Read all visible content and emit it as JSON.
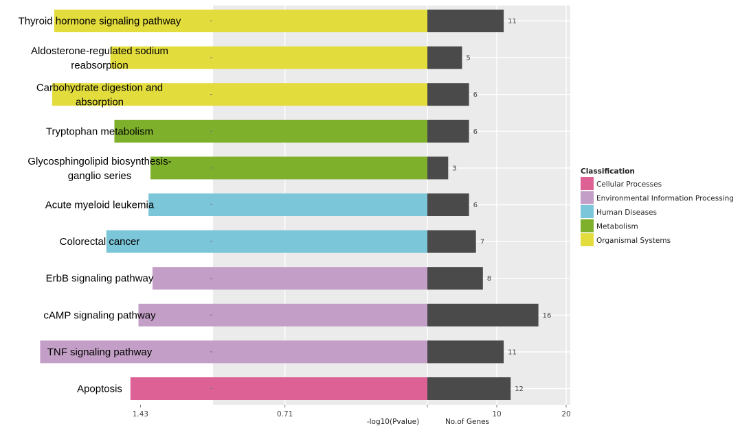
{
  "chart_data": {
    "type": "bar",
    "categories": [
      "Thyroid hormone signaling pathway",
      "Aldosterone-regulated sodium reabsorption",
      "Carbohydrate digestion and absorption",
      "Tryptophan metabolism",
      "Glycosphingolipid biosynthesis-ganglio series",
      "Acute myeloid leukemia",
      "Colorectal cancer",
      "ErbB signaling pathway",
      "cAMP signaling pathway",
      "TNF signaling pathway",
      "Apoptosis"
    ],
    "label_lines": [
      [
        "Thyroid hormone signaling pathway"
      ],
      [
        "Aldosterone-regulated sodium",
        "reabsorption"
      ],
      [
        "Carbohydrate digestion and",
        "absorption"
      ],
      [
        "Tryptophan metabolism"
      ],
      [
        "Glycosphingolipid biosynthesis-",
        "ganglio series"
      ],
      [
        "Acute myeloid leukemia"
      ],
      [
        "Colorectal cancer"
      ],
      [
        "ErbB signaling pathway"
      ],
      [
        "cAMP signaling pathway"
      ],
      [
        "TNF signaling pathway"
      ],
      [
        "Apoptosis"
      ]
    ],
    "classification": [
      "Organismal Systems",
      "Organismal Systems",
      "Organismal Systems",
      "Metabolism",
      "Metabolism",
      "Human Diseases",
      "Human Diseases",
      "Environmental Information Processing",
      "Environmental Information Processing",
      "Environmental Information Processing",
      "Cellular Processes"
    ],
    "series": [
      {
        "name": "-log10(Pvalue)",
        "values": [
          1.86,
          1.58,
          1.87,
          1.56,
          1.38,
          1.39,
          1.6,
          1.37,
          1.44,
          1.93,
          1.48
        ]
      },
      {
        "name": "No.of Genes",
        "values": [
          11,
          5,
          6,
          6,
          3,
          6,
          7,
          8,
          16,
          11,
          12
        ]
      }
    ],
    "left_axis": {
      "label": "-log10(Pvalue)",
      "ticks": [
        1.43,
        0.71
      ],
      "tick_labels": [
        "1.43",
        "0.71"
      ],
      "range": [
        2.14,
        0
      ]
    },
    "right_axis": {
      "label": "No.of Genes",
      "ticks": [
        10,
        20
      ],
      "tick_labels": [
        "10",
        "20"
      ],
      "range": [
        0,
        20
      ]
    },
    "legend": {
      "title": "Classification",
      "position": "right",
      "entries": [
        {
          "label": "Cellular Processes",
          "color": "#DD6195"
        },
        {
          "label": "Environmental Information Processing",
          "color": "#C39EC6"
        },
        {
          "label": "Human Diseases",
          "color": "#7BC6D8"
        },
        {
          "label": "Metabolism",
          "color": "#7FB02C"
        },
        {
          "label": "Organismal Systems",
          "color": "#E3DC3D"
        }
      ]
    },
    "gene_bar_color": "#4A4A4A",
    "panel_background": "#EBEBEB",
    "grid": true
  }
}
